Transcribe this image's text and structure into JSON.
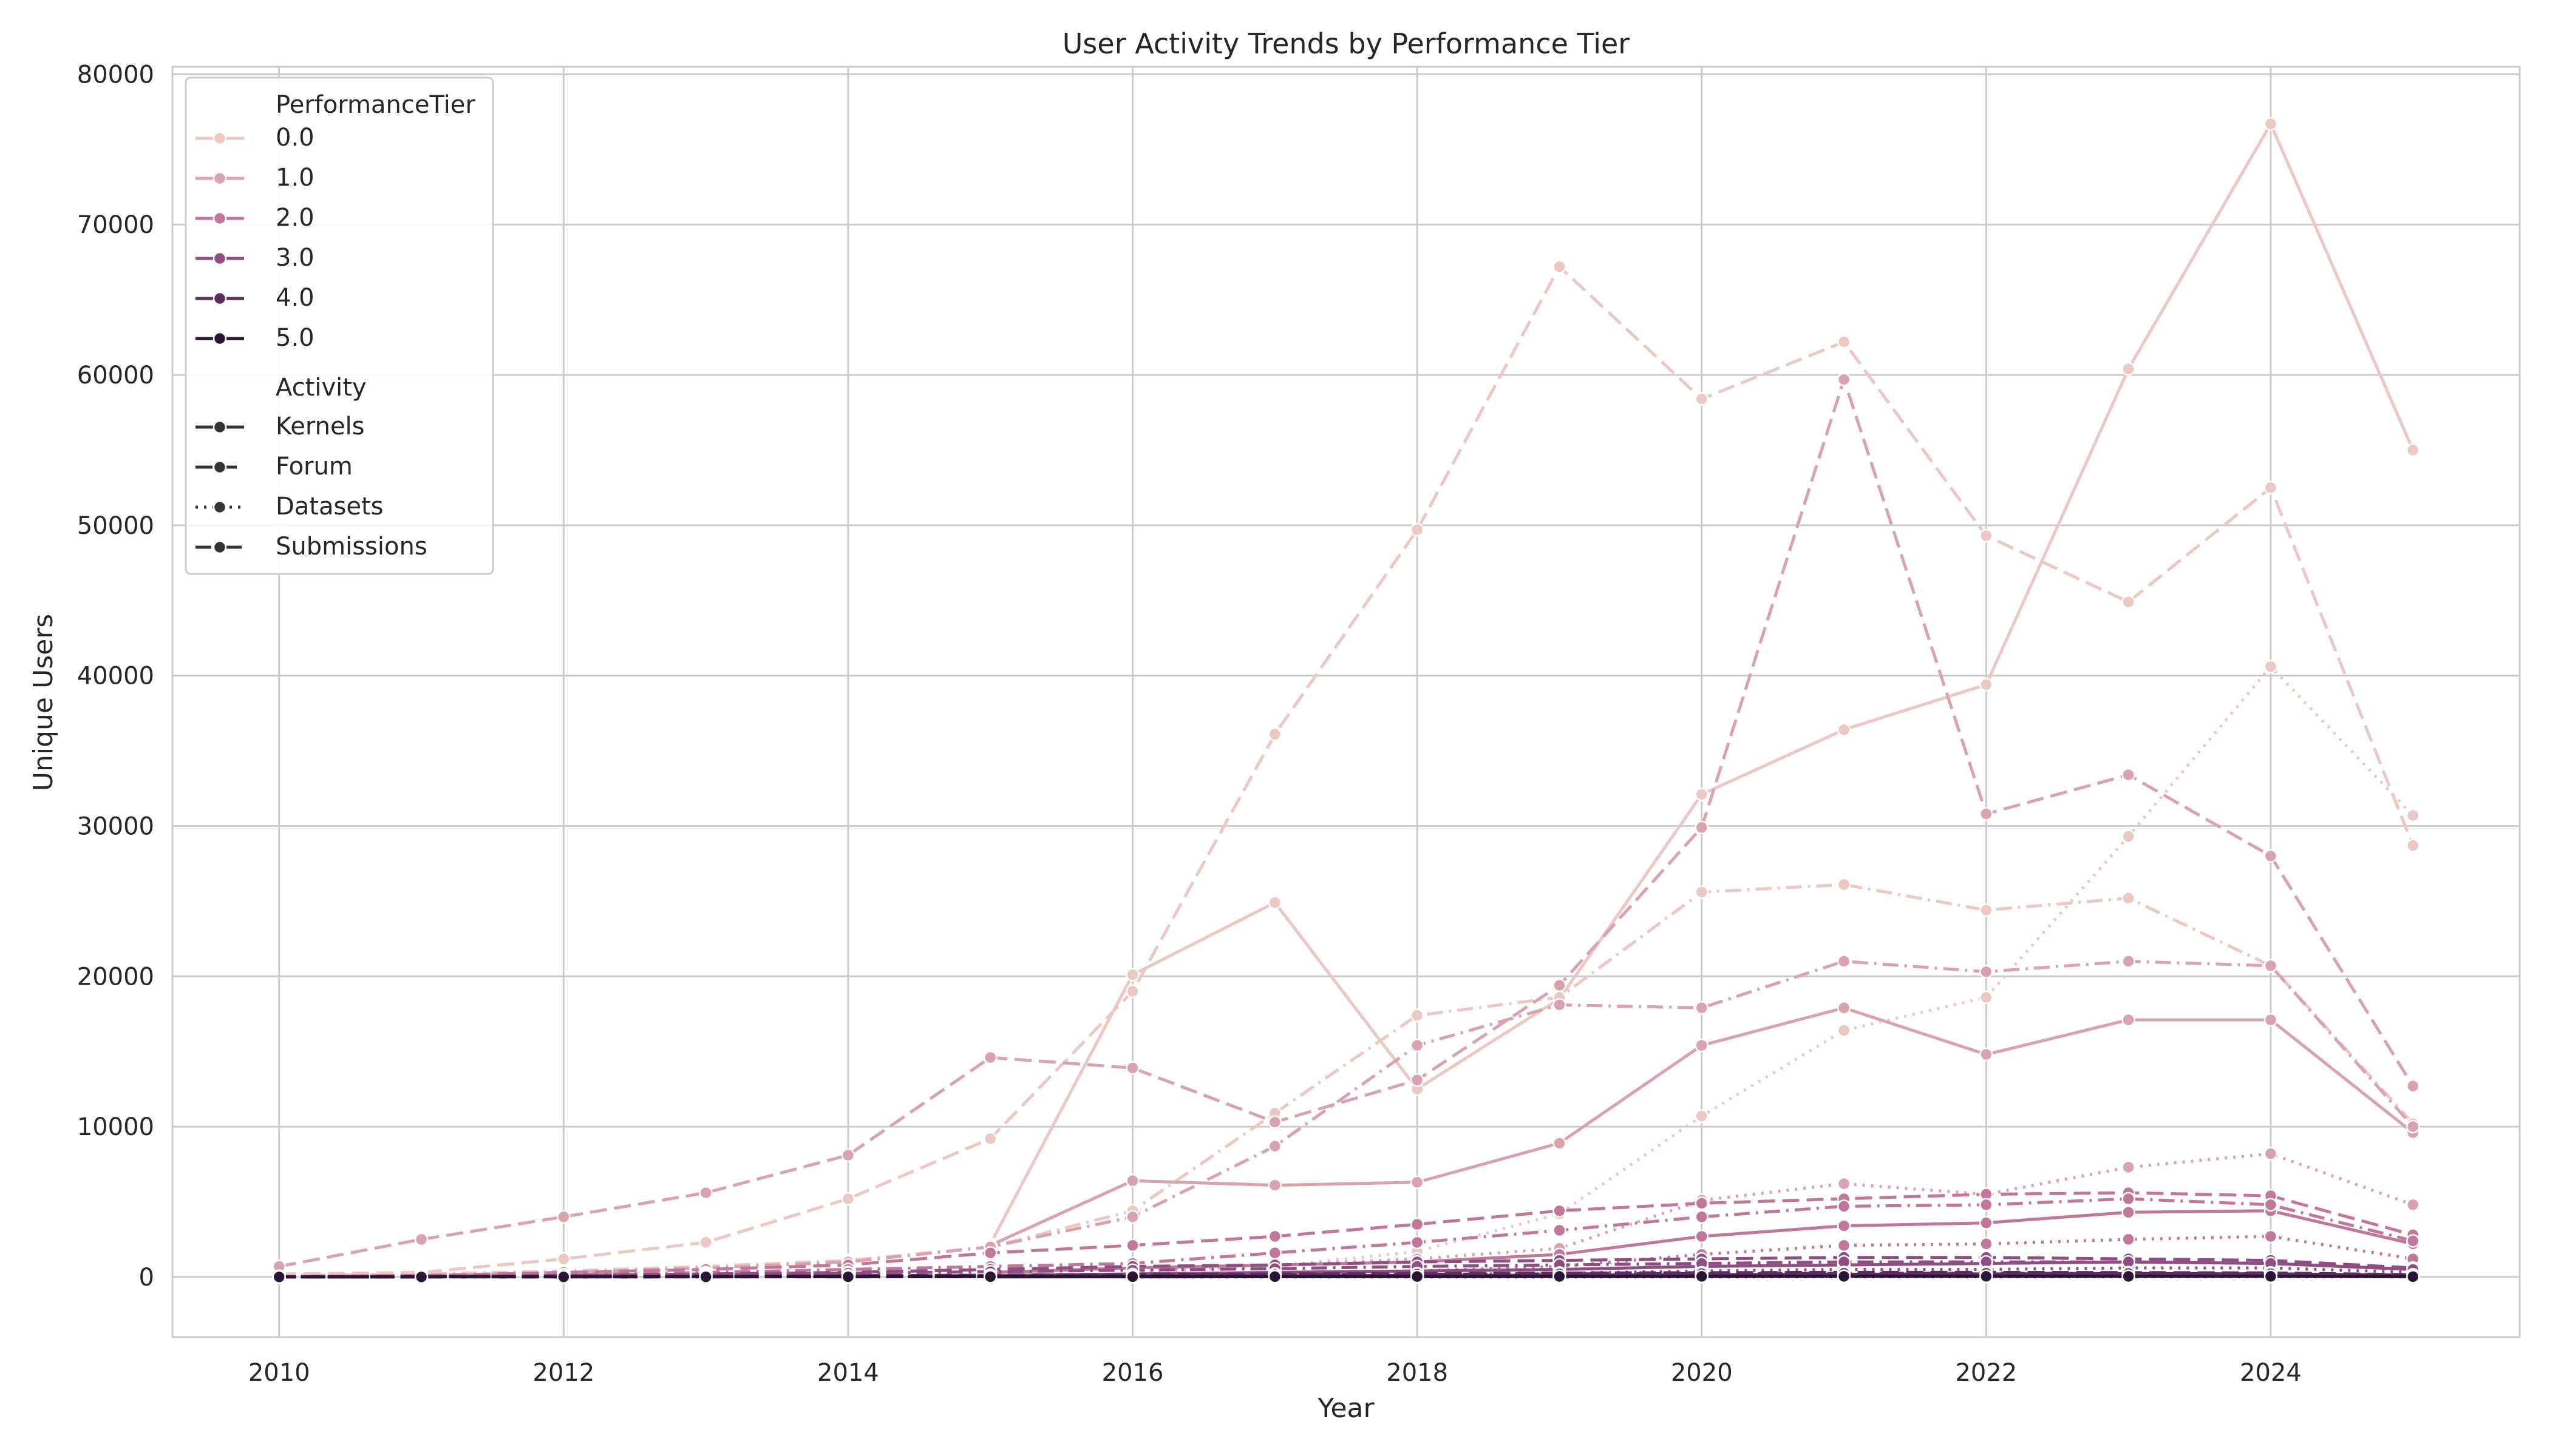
{
  "chart_data": {
    "type": "line",
    "title": "User Activity Trends by Performance Tier",
    "xlabel": "Year",
    "ylabel": "Unique Users",
    "xlim": [
      2009.25,
      2025.75
    ],
    "ylim": [
      -4000,
      80500
    ],
    "x_ticks": [
      2010,
      2012,
      2014,
      2016,
      2018,
      2020,
      2022,
      2024
    ],
    "y_ticks": [
      0,
      10000,
      20000,
      30000,
      40000,
      50000,
      60000,
      70000,
      80000
    ],
    "x_tick_labels": [
      "2010",
      "2012",
      "2014",
      "2016",
      "2018",
      "2020",
      "2022",
      "2024"
    ],
    "y_tick_labels": [
      "0",
      "10000",
      "20000",
      "30000",
      "40000",
      "50000",
      "60000",
      "70000",
      "80000"
    ],
    "grid": true,
    "legend": {
      "position": "top-left",
      "hue_title": "PerformanceTier",
      "style_title": "Activity",
      "hue_entries": [
        {
          "label": "0.0",
          "color": "#ebc8c1"
        },
        {
          "label": "1.0",
          "color": "#d9a3ae"
        },
        {
          "label": "2.0",
          "color": "#c0779a"
        },
        {
          "label": "3.0",
          "color": "#8f4e82"
        },
        {
          "label": "4.0",
          "color": "#5c2d5e"
        },
        {
          "label": "5.0",
          "color": "#2a1534"
        }
      ],
      "style_entries": [
        {
          "label": "Kernels",
          "dash": "solid"
        },
        {
          "label": "Forum",
          "dash": "dashed"
        },
        {
          "label": "Datasets",
          "dash": "dotted"
        },
        {
          "label": "Submissions",
          "dash": "dashdot"
        }
      ]
    },
    "series": [
      {
        "tier": "0.0",
        "activity": "Kernels",
        "x": [
          2015,
          2016,
          2017,
          2018,
          2019,
          2020,
          2021,
          2022,
          2023,
          2024,
          2025
        ],
        "values": [
          2200,
          20100,
          24900,
          12500,
          18500,
          32100,
          36400,
          39400,
          60400,
          76700,
          55000
        ]
      },
      {
        "tier": "0.0",
        "activity": "Forum",
        "x": [
          2010,
          2011,
          2012,
          2013,
          2014,
          2015,
          2016,
          2017,
          2018,
          2019,
          2020,
          2021,
          2022,
          2023,
          2024,
          2025
        ],
        "values": [
          200,
          300,
          1200,
          2300,
          5200,
          9200,
          19000,
          36100,
          49700,
          67200,
          58400,
          62200,
          49300,
          44900,
          52500,
          28700
        ]
      },
      {
        "tier": "0.0",
        "activity": "Datasets",
        "x": [
          2016,
          2017,
          2018,
          2019,
          2020,
          2021,
          2022,
          2023,
          2024,
          2025
        ],
        "values": [
          300,
          700,
          1700,
          4200,
          10700,
          16400,
          18600,
          29300,
          40600,
          30700
        ]
      },
      {
        "tier": "0.0",
        "activity": "Submissions",
        "x": [
          2010,
          2011,
          2012,
          2013,
          2014,
          2015,
          2016,
          2017,
          2018,
          2019,
          2020,
          2021,
          2022,
          2023,
          2024,
          2025
        ],
        "values": [
          100,
          200,
          400,
          700,
          1100,
          2000,
          4400,
          10900,
          17400,
          18600,
          25600,
          26100,
          24400,
          25200,
          20700,
          10200
        ]
      },
      {
        "tier": "1.0",
        "activity": "Kernels",
        "x": [
          2015,
          2016,
          2017,
          2018,
          2019,
          2020,
          2021,
          2022,
          2023,
          2024,
          2025
        ],
        "values": [
          2100,
          6400,
          6100,
          6300,
          8900,
          15400,
          17900,
          14800,
          17100,
          17100,
          9600
        ]
      },
      {
        "tier": "1.0",
        "activity": "Forum",
        "x": [
          2010,
          2011,
          2012,
          2013,
          2014,
          2015,
          2016,
          2017,
          2018,
          2019,
          2020,
          2021,
          2022,
          2023,
          2024,
          2025
        ],
        "values": [
          700,
          2500,
          4000,
          5600,
          8100,
          14600,
          13900,
          10300,
          13100,
          19400,
          29900,
          59700,
          30800,
          33400,
          28000,
          12700
        ]
      },
      {
        "tier": "1.0",
        "activity": "Datasets",
        "x": [
          2016,
          2017,
          2018,
          2019,
          2020,
          2021,
          2022,
          2023,
          2024,
          2025
        ],
        "values": [
          400,
          800,
          1200,
          1900,
          5100,
          6200,
          5500,
          7300,
          8200,
          4800
        ]
      },
      {
        "tier": "1.0",
        "activity": "Submissions",
        "x": [
          2010,
          2011,
          2012,
          2013,
          2014,
          2015,
          2016,
          2017,
          2018,
          2019,
          2020,
          2021,
          2022,
          2023,
          2024,
          2025
        ],
        "values": [
          50,
          100,
          300,
          600,
          1000,
          2000,
          4000,
          8700,
          15400,
          18100,
          17900,
          21000,
          20300,
          21000,
          20700,
          10000
        ]
      },
      {
        "tier": "2.0",
        "activity": "Kernels",
        "x": [
          2015,
          2016,
          2017,
          2018,
          2019,
          2020,
          2021,
          2022,
          2023,
          2024,
          2025
        ],
        "values": [
          300,
          600,
          800,
          1000,
          1500,
          2700,
          3400,
          3600,
          4300,
          4400,
          2200
        ]
      },
      {
        "tier": "2.0",
        "activity": "Forum",
        "x": [
          2010,
          2011,
          2012,
          2013,
          2014,
          2015,
          2016,
          2017,
          2018,
          2019,
          2020,
          2021,
          2022,
          2023,
          2024,
          2025
        ],
        "values": [
          30,
          100,
          300,
          500,
          800,
          1600,
          2100,
          2700,
          3500,
          4400,
          4900,
          5200,
          5500,
          5600,
          5400,
          2800
        ]
      },
      {
        "tier": "2.0",
        "activity": "Datasets",
        "x": [
          2016,
          2017,
          2018,
          2019,
          2020,
          2021,
          2022,
          2023,
          2024,
          2025
        ],
        "values": [
          100,
          200,
          400,
          700,
          1500,
          2100,
          2200,
          2500,
          2700,
          1200
        ]
      },
      {
        "tier": "2.0",
        "activity": "Submissions",
        "x": [
          2010,
          2011,
          2012,
          2013,
          2014,
          2015,
          2016,
          2017,
          2018,
          2019,
          2020,
          2021,
          2022,
          2023,
          2024,
          2025
        ],
        "values": [
          20,
          60,
          150,
          300,
          500,
          700,
          900,
          1600,
          2300,
          3100,
          4000,
          4700,
          4800,
          5200,
          4800,
          2400
        ]
      },
      {
        "tier": "3.0",
        "activity": "Kernels",
        "x": [
          2015,
          2016,
          2017,
          2018,
          2019,
          2020,
          2021,
          2022,
          2023,
          2024,
          2025
        ],
        "values": [
          100,
          200,
          300,
          400,
          500,
          700,
          800,
          900,
          1000,
          900,
          500
        ]
      },
      {
        "tier": "3.0",
        "activity": "Forum",
        "x": [
          2010,
          2011,
          2012,
          2013,
          2014,
          2015,
          2016,
          2017,
          2018,
          2019,
          2020,
          2021,
          2022,
          2023,
          2024,
          2025
        ],
        "values": [
          10,
          40,
          100,
          200,
          300,
          500,
          700,
          800,
          1000,
          1100,
          1200,
          1300,
          1300,
          1200,
          1100,
          600
        ]
      },
      {
        "tier": "3.0",
        "activity": "Datasets",
        "x": [
          2016,
          2017,
          2018,
          2019,
          2020,
          2021,
          2022,
          2023,
          2024,
          2025
        ],
        "values": [
          50,
          100,
          150,
          250,
          400,
          500,
          500,
          600,
          600,
          300
        ]
      },
      {
        "tier": "3.0",
        "activity": "Submissions",
        "x": [
          2010,
          2011,
          2012,
          2013,
          2014,
          2015,
          2016,
          2017,
          2018,
          2019,
          2020,
          2021,
          2022,
          2023,
          2024,
          2025
        ],
        "values": [
          10,
          30,
          80,
          150,
          250,
          350,
          450,
          550,
          700,
          800,
          900,
          1000,
          1000,
          1000,
          900,
          500
        ]
      },
      {
        "tier": "4.0",
        "activity": "Kernels",
        "x": [
          2015,
          2016,
          2017,
          2018,
          2019,
          2020,
          2021,
          2022,
          2023,
          2024,
          2025
        ],
        "values": [
          30,
          60,
          80,
          100,
          120,
          150,
          180,
          200,
          220,
          200,
          120
        ]
      },
      {
        "tier": "4.0",
        "activity": "Forum",
        "x": [
          2010,
          2011,
          2012,
          2013,
          2014,
          2015,
          2016,
          2017,
          2018,
          2019,
          2020,
          2021,
          2022,
          2023,
          2024,
          2025
        ],
        "values": [
          5,
          10,
          30,
          50,
          80,
          120,
          160,
          200,
          230,
          260,
          280,
          300,
          300,
          290,
          270,
          150
        ]
      },
      {
        "tier": "4.0",
        "activity": "Datasets",
        "x": [
          2016,
          2017,
          2018,
          2019,
          2020,
          2021,
          2022,
          2023,
          2024,
          2025
        ],
        "values": [
          10,
          20,
          30,
          50,
          80,
          100,
          110,
          120,
          120,
          60
        ]
      },
      {
        "tier": "4.0",
        "activity": "Submissions",
        "x": [
          2010,
          2011,
          2012,
          2013,
          2014,
          2015,
          2016,
          2017,
          2018,
          2019,
          2020,
          2021,
          2022,
          2023,
          2024,
          2025
        ],
        "values": [
          5,
          10,
          20,
          40,
          60,
          90,
          120,
          150,
          180,
          200,
          220,
          240,
          240,
          230,
          210,
          120
        ]
      },
      {
        "tier": "5.0",
        "activity": "Kernels",
        "x": [
          2015,
          2016,
          2017,
          2018,
          2019,
          2020,
          2021,
          2022,
          2023,
          2024,
          2025
        ],
        "values": [
          5,
          10,
          15,
          20,
          25,
          30,
          40,
          40,
          45,
          40,
          25
        ]
      },
      {
        "tier": "5.0",
        "activity": "Forum",
        "x": [
          2010,
          2011,
          2012,
          2013,
          2014,
          2015,
          2016,
          2017,
          2018,
          2019,
          2020,
          2021,
          2022,
          2023,
          2024,
          2025
        ],
        "values": [
          1,
          2,
          5,
          10,
          15,
          20,
          25,
          30,
          35,
          40,
          45,
          50,
          50,
          48,
          45,
          25
        ]
      },
      {
        "tier": "5.0",
        "activity": "Datasets",
        "x": [
          2016,
          2017,
          2018,
          2019,
          2020,
          2021,
          2022,
          2023,
          2024,
          2025
        ],
        "values": [
          2,
          4,
          6,
          8,
          12,
          15,
          16,
          18,
          18,
          10
        ]
      },
      {
        "tier": "5.0",
        "activity": "Submissions",
        "x": [
          2010,
          2011,
          2012,
          2013,
          2014,
          2015,
          2016,
          2017,
          2018,
          2019,
          2020,
          2021,
          2022,
          2023,
          2024,
          2025
        ],
        "values": [
          1,
          2,
          4,
          8,
          12,
          16,
          20,
          25,
          30,
          35,
          40,
          42,
          42,
          40,
          38,
          20
        ]
      }
    ]
  }
}
